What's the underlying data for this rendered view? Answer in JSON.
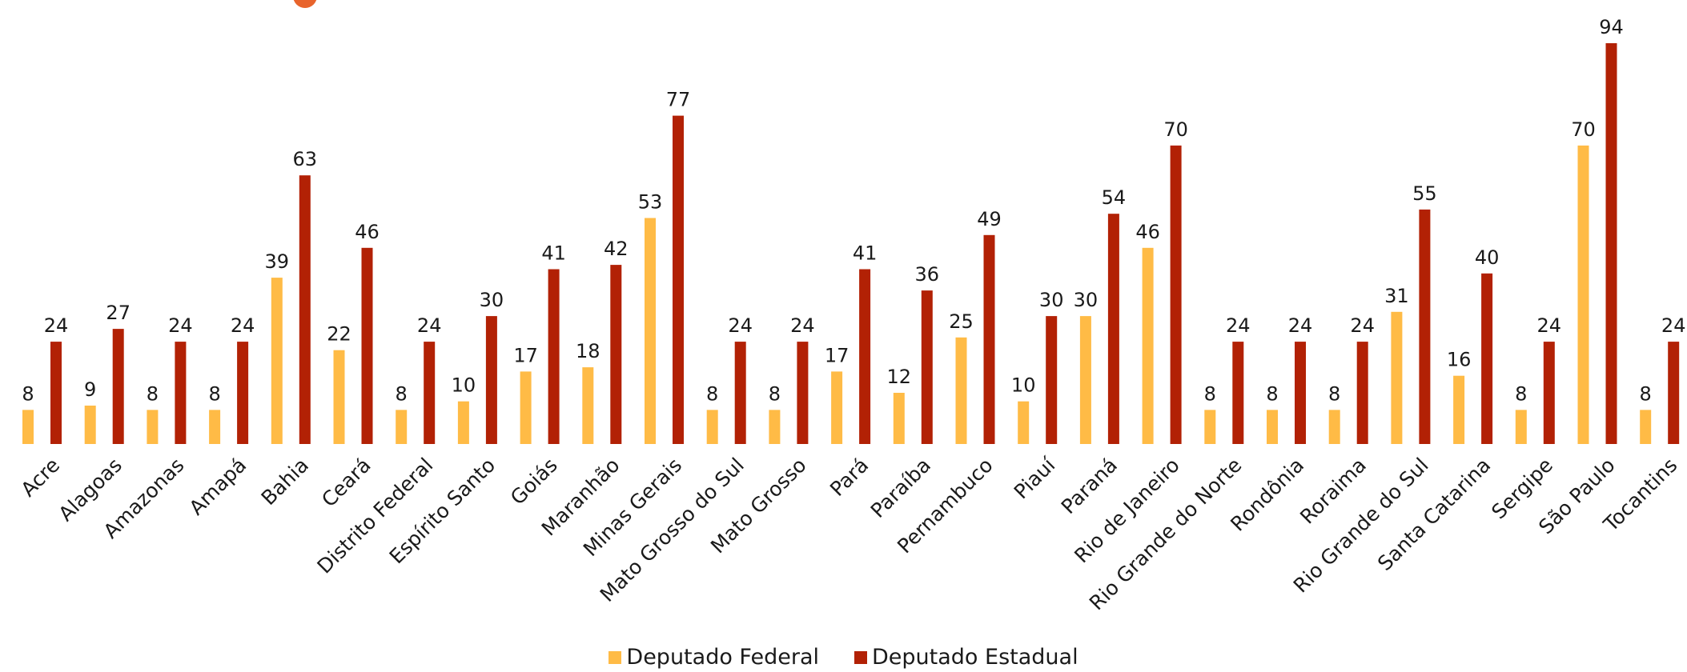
{
  "chart_data": {
    "type": "bar",
    "categories": [
      "Acre",
      "Alagoas",
      "Amazonas",
      "Amapá",
      "Bahia",
      "Ceará",
      "Distrito Federal",
      "Espírito Santo",
      "Goiás",
      "Maranhão",
      "Minas Gerais",
      "Mato Grosso do Sul",
      "Mato Grosso",
      "Pará",
      "Paraíba",
      "Pernambuco",
      "Piauí",
      "Paraná",
      "Rio de Janeiro",
      "Rio Grande do Norte",
      "Rondônia",
      "Roraima",
      "Rio Grande do Sul",
      "Santa Catarina",
      "Sergipe",
      "São Paulo",
      "Tocantins"
    ],
    "series": [
      {
        "name": "Deputado Federal",
        "color": "#ffbb46",
        "values": [
          8,
          9,
          8,
          8,
          39,
          22,
          8,
          10,
          17,
          18,
          53,
          8,
          8,
          17,
          12,
          25,
          10,
          30,
          46,
          8,
          8,
          8,
          31,
          16,
          8,
          70,
          8
        ]
      },
      {
        "name": "Deputado Estadual",
        "color": "#b22105",
        "values": [
          24,
          27,
          24,
          24,
          63,
          46,
          24,
          30,
          41,
          42,
          77,
          24,
          24,
          41,
          36,
          49,
          30,
          54,
          70,
          24,
          24,
          24,
          55,
          40,
          24,
          94,
          24
        ]
      }
    ],
    "ylim": [
      0,
      94
    ],
    "grid": false,
    "legend_position": "bottom-center",
    "data_labels": true
  },
  "decor": {
    "corner_mark_color": "#e8642c"
  }
}
